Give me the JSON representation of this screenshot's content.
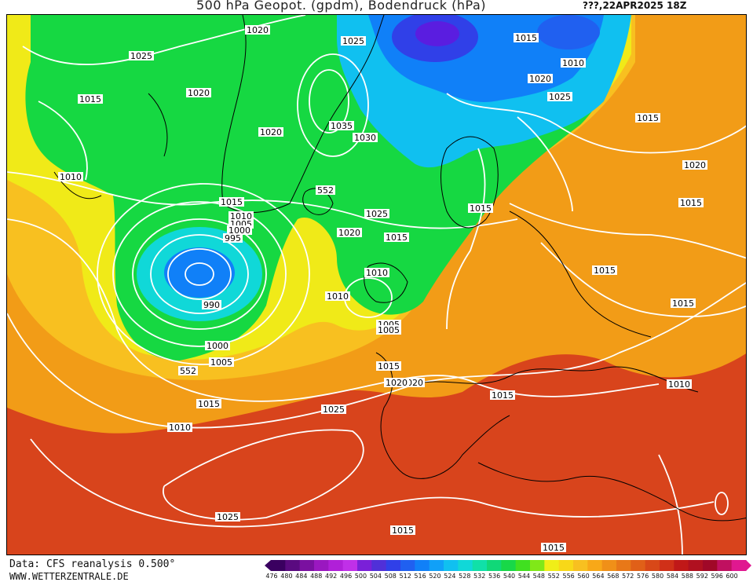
{
  "header": {
    "title": "500 hPa Geopot. (gpdm), Bodendruck (hPa)",
    "datetime": "???,22APR2025 18Z"
  },
  "map": {
    "isobar_labels": [
      "1020",
      "1025",
      "1015",
      "1025",
      "1020",
      "1010",
      "1020",
      "1015",
      "1025",
      "1020",
      "1035",
      "1030",
      "1010",
      "1015",
      "552",
      "1015",
      "1010",
      "1005",
      "1000",
      "995",
      "1025",
      "1015",
      "1015",
      "1020",
      "1015",
      "1015",
      "1010",
      "1020",
      "1010",
      "990",
      "1010",
      "1015",
      "1000",
      "1005",
      "1005",
      "1005",
      "1015",
      "1020",
      "552",
      "1015",
      "1015",
      "1010",
      "1025",
      "1020",
      "1025",
      "1015",
      "1015"
    ],
    "colors": {
      "green": "#16d842",
      "blue_low": "#5a1de0",
      "yellow": "#f0ea18",
      "orange": "#f29c17",
      "red": "#d8441c",
      "isobar": "#ffffff"
    }
  },
  "footer": {
    "credit_line1": "Data: CFS reanalysis 0.500°",
    "credit_line2": "WWW.WETTERZENTRALE.DE",
    "colorbar_labels": [
      "476",
      "480",
      "484",
      "488",
      "492",
      "496",
      "500",
      "504",
      "508",
      "512",
      "516",
      "520",
      "524",
      "528",
      "532",
      "536",
      "540",
      "544",
      "548",
      "552",
      "556",
      "560",
      "564",
      "568",
      "572",
      "576",
      "580",
      "584",
      "588",
      "592",
      "596",
      "600"
    ],
    "colorbar_colors": [
      "#3a0060",
      "#5a0a80",
      "#7a10a0",
      "#9a18c0",
      "#b020d8",
      "#c030e8",
      "#7a20d8",
      "#5030d8",
      "#3040e8",
      "#2060f0",
      "#1080f8",
      "#10a0f8",
      "#10c0f0",
      "#10d8d8",
      "#10e0a8",
      "#10d878",
      "#18d848",
      "#40e020",
      "#80e818",
      "#f0ee18",
      "#f8d818",
      "#f8c020",
      "#f8a818",
      "#f09018",
      "#e87818",
      "#e06018",
      "#d84818",
      "#d03018",
      "#c01818",
      "#b01020",
      "#a00828",
      "#c01060",
      "#e01890"
    ]
  }
}
